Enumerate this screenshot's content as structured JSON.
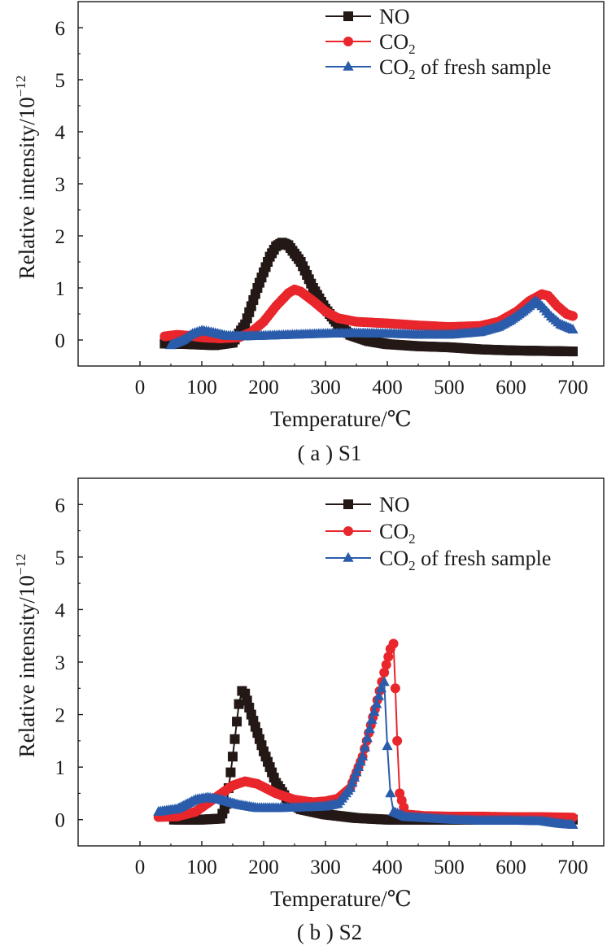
{
  "figure": {
    "colors": {
      "NO": "#231816",
      "CO2": "#e8262b",
      "CO2_fresh": "#2a5cab",
      "axis": "#1a1a1a"
    }
  },
  "chart_data": [
    {
      "type": "line",
      "panel": "a",
      "caption": "( a ) S1",
      "xlabel": "Temperature/℃",
      "ylabel": "Relative intensity/10",
      "ylabel_exp": "−12",
      "xlim": [
        -100,
        750
      ],
      "ylim": [
        -0.5,
        6.5
      ],
      "xticks": [
        "0",
        "100",
        "200",
        "300",
        "400",
        "500",
        "600",
        "700"
      ],
      "yticks": [
        "0",
        "1",
        "2",
        "3",
        "4",
        "5",
        "6"
      ],
      "legend_position": "top-right",
      "series": [
        {
          "name": "NO",
          "label_main": "NO",
          "label_sub": "",
          "label_rest": "",
          "color": "#231816",
          "marker": "square",
          "points": [
            [
              40,
              -0.07
            ],
            [
              80,
              -0.08
            ],
            [
              120,
              -0.1
            ],
            [
              150,
              -0.05
            ],
            [
              170,
              0.3
            ],
            [
              190,
              1.0
            ],
            [
              210,
              1.6
            ],
            [
              220,
              1.8
            ],
            [
              230,
              1.87
            ],
            [
              240,
              1.82
            ],
            [
              260,
              1.5
            ],
            [
              280,
              1.0
            ],
            [
              300,
              0.6
            ],
            [
              320,
              0.3
            ],
            [
              340,
              0.1
            ],
            [
              370,
              -0.02
            ],
            [
              400,
              -0.08
            ],
            [
              450,
              -0.12
            ],
            [
              500,
              -0.14
            ],
            [
              550,
              -0.18
            ],
            [
              600,
              -0.2
            ],
            [
              650,
              -0.21
            ],
            [
              700,
              -0.22
            ]
          ]
        },
        {
          "name": "CO2",
          "label_main": "CO",
          "label_sub": "2",
          "label_rest": "",
          "color": "#e8262b",
          "marker": "circle",
          "points": [
            [
              40,
              0.07
            ],
            [
              60,
              0.1
            ],
            [
              80,
              0.08
            ],
            [
              100,
              0.05
            ],
            [
              130,
              0.03
            ],
            [
              160,
              0.05
            ],
            [
              180,
              0.15
            ],
            [
              200,
              0.35
            ],
            [
              220,
              0.65
            ],
            [
              240,
              0.9
            ],
            [
              250,
              0.97
            ],
            [
              260,
              0.93
            ],
            [
              280,
              0.75
            ],
            [
              300,
              0.55
            ],
            [
              320,
              0.42
            ],
            [
              350,
              0.35
            ],
            [
              400,
              0.32
            ],
            [
              450,
              0.28
            ],
            [
              500,
              0.25
            ],
            [
              550,
              0.27
            ],
            [
              580,
              0.35
            ],
            [
              610,
              0.55
            ],
            [
              630,
              0.75
            ],
            [
              650,
              0.88
            ],
            [
              660,
              0.85
            ],
            [
              675,
              0.65
            ],
            [
              690,
              0.5
            ],
            [
              700,
              0.46
            ]
          ]
        },
        {
          "name": "CO2 of fresh sample",
          "label_main": "CO",
          "label_sub": "2",
          "label_rest": " of fresh sample",
          "color": "#2a5cab",
          "marker": "triangle",
          "points": [
            [
              50,
              -0.1
            ],
            [
              70,
              0.0
            ],
            [
              85,
              0.12
            ],
            [
              100,
              0.18
            ],
            [
              115,
              0.15
            ],
            [
              140,
              0.08
            ],
            [
              170,
              0.07
            ],
            [
              200,
              0.08
            ],
            [
              250,
              0.1
            ],
            [
              300,
              0.12
            ],
            [
              350,
              0.13
            ],
            [
              400,
              0.12
            ],
            [
              450,
              0.1
            ],
            [
              500,
              0.1
            ],
            [
              550,
              0.15
            ],
            [
              580,
              0.25
            ],
            [
              600,
              0.38
            ],
            [
              620,
              0.55
            ],
            [
              640,
              0.75
            ],
            [
              650,
              0.65
            ],
            [
              665,
              0.45
            ],
            [
              680,
              0.3
            ],
            [
              700,
              0.2
            ]
          ]
        }
      ]
    },
    {
      "type": "line",
      "panel": "b",
      "caption": "( b ) S2",
      "xlabel": "Temperature/℃",
      "ylabel": "Relative intensity/10",
      "ylabel_exp": "−12",
      "xlim": [
        -100,
        750
      ],
      "ylim": [
        -0.5,
        6.5
      ],
      "xticks": [
        "0",
        "100",
        "200",
        "300",
        "400",
        "500",
        "600",
        "700"
      ],
      "yticks": [
        "0",
        "1",
        "2",
        "3",
        "4",
        "5",
        "6"
      ],
      "legend_position": "top-right",
      "series": [
        {
          "name": "NO",
          "label_main": "NO",
          "label_sub": "",
          "label_rest": "",
          "color": "#231816",
          "marker": "square",
          "points": [
            [
              55,
              0.0
            ],
            [
              100,
              0.0
            ],
            [
              130,
              0.02
            ],
            [
              140,
              0.3
            ],
            [
              150,
              1.2
            ],
            [
              160,
              2.2
            ],
            [
              165,
              2.45
            ],
            [
              170,
              2.4
            ],
            [
              180,
              2.0
            ],
            [
              200,
              1.3
            ],
            [
              220,
              0.7
            ],
            [
              240,
              0.35
            ],
            [
              260,
              0.2
            ],
            [
              300,
              0.1
            ],
            [
              350,
              0.03
            ],
            [
              400,
              0.0
            ],
            [
              450,
              0.0
            ],
            [
              500,
              0.0
            ],
            [
              600,
              0.0
            ],
            [
              700,
              0.0
            ]
          ]
        },
        {
          "name": "CO2",
          "label_main": "CO",
          "label_sub": "2",
          "label_rest": "",
          "color": "#e8262b",
          "marker": "circle",
          "points": [
            [
              30,
              0.05
            ],
            [
              60,
              0.06
            ],
            [
              90,
              0.15
            ],
            [
              120,
              0.4
            ],
            [
              150,
              0.65
            ],
            [
              170,
              0.73
            ],
            [
              190,
              0.68
            ],
            [
              220,
              0.5
            ],
            [
              250,
              0.38
            ],
            [
              280,
              0.33
            ],
            [
              300,
              0.35
            ],
            [
              320,
              0.4
            ],
            [
              340,
              0.6
            ],
            [
              360,
              1.2
            ],
            [
              380,
              2.1
            ],
            [
              395,
              2.8
            ],
            [
              405,
              3.25
            ],
            [
              410,
              3.35
            ],
            [
              413,
              2.5
            ],
            [
              416,
              1.5
            ],
            [
              420,
              0.5
            ],
            [
              430,
              0.1
            ],
            [
              460,
              0.07
            ],
            [
              500,
              0.06
            ],
            [
              550,
              0.06
            ],
            [
              600,
              0.05
            ],
            [
              650,
              0.05
            ],
            [
              700,
              0.04
            ]
          ]
        },
        {
          "name": "CO2 of fresh sample",
          "label_main": "CO",
          "label_sub": "2",
          "label_rest": " of fresh sample",
          "color": "#2a5cab",
          "marker": "triangle",
          "points": [
            [
              30,
              0.15
            ],
            [
              60,
              0.2
            ],
            [
              90,
              0.38
            ],
            [
              110,
              0.42
            ],
            [
              130,
              0.38
            ],
            [
              160,
              0.28
            ],
            [
              190,
              0.22
            ],
            [
              220,
              0.22
            ],
            [
              260,
              0.23
            ],
            [
              300,
              0.25
            ],
            [
              320,
              0.3
            ],
            [
              340,
              0.6
            ],
            [
              360,
              1.2
            ],
            [
              375,
              1.9
            ],
            [
              390,
              2.5
            ],
            [
              395,
              2.62
            ],
            [
              400,
              1.4
            ],
            [
              405,
              0.5
            ],
            [
              410,
              0.15
            ],
            [
              430,
              0.05
            ],
            [
              460,
              0.03
            ],
            [
              500,
              0.0
            ],
            [
              550,
              -0.02
            ],
            [
              600,
              -0.02
            ],
            [
              650,
              -0.03
            ],
            [
              680,
              -0.08
            ],
            [
              700,
              -0.1
            ]
          ]
        }
      ]
    }
  ]
}
